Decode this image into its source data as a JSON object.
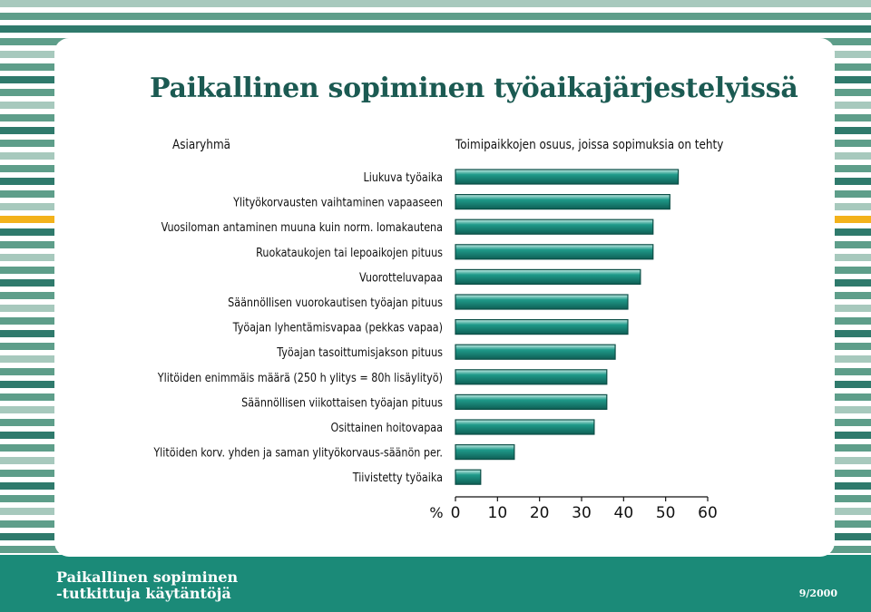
{
  "title": "Paikallinen sopiminen työaikajärjestelyissä",
  "category_header": "Asiaryhmä",
  "value_header": "Toimipaikkojen osuus, joissa sopimuksia on tehty",
  "footer": {
    "line1": "Paikallinen sopiminen",
    "line2": "-tutkittuja käytäntöjä",
    "issue": "9/2000"
  },
  "colors": {
    "teal_dark": "#1b8a78",
    "teal_mid": "#5e9e8a",
    "teal_light": "#a7c9bd",
    "stripe_dark": "#2f7a6c",
    "yellow": "#f3b21b",
    "title": "#1b5a52",
    "bar_fill": "#1f9a8a",
    "bar_edge": "#0c4e46"
  },
  "chart_data": {
    "type": "bar",
    "orientation": "horizontal",
    "axis_unit_label": "%",
    "xlim": [
      0,
      60
    ],
    "xticks": [
      0,
      10,
      20,
      30,
      40,
      50,
      60
    ],
    "categories": [
      "Liukuva työaika",
      "Ylityökorvausten vaihtaminen vapaaseen",
      "Vuosiloman antaminen muuna kuin norm. lomakautena",
      "Ruokataukojen tai lepoaikojen pituus",
      "Vuorotteluvapaa",
      "Säännöllisen vuorokautisen työajan pituus",
      "Työajan lyhentämisvapaa (pekkas vapaa)",
      "Työajan tasoittumisjakson pituus",
      "Ylitöiden enimmäis määrä (250 h ylitys = 80h lisäylityö)",
      "Säännöllisen viikottaisen työajan pituus",
      "Osittainen hoitovapaa",
      "Ylitöiden korv. yhden ja saman ylityökorvaus-säänön per.",
      "Tiivistetty työaika"
    ],
    "values": [
      53,
      51,
      47,
      47,
      44,
      41,
      41,
      38,
      36,
      36,
      33,
      14,
      6
    ],
    "grid": false,
    "legend": "none"
  }
}
